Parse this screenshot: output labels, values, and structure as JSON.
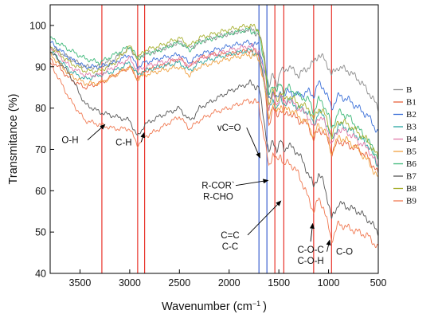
{
  "chart_data": {
    "type": "line",
    "xlabel": "Wavenumber (cm",
    "xlabel_sup": "−1",
    "xlabel_end": ")",
    "ylabel": "Transmitance (%)",
    "xlim": [
      3800,
      500
    ],
    "ylim": [
      40,
      105
    ],
    "x_reversed": true,
    "xticks": [
      3500,
      3000,
      2500,
      2000,
      1500,
      1000,
      500
    ],
    "yticks": [
      40,
      50,
      60,
      70,
      80,
      90,
      100
    ],
    "grid": false,
    "legend_position": "right",
    "reference_lines": [
      {
        "x": 3280,
        "color": "#e8332a"
      },
      {
        "x": 2920,
        "color": "#e8332a"
      },
      {
        "x": 2850,
        "color": "#e8332a"
      },
      {
        "x": 1700,
        "color": "#3a5fd0"
      },
      {
        "x": 1620,
        "color": "#3a5fd0"
      },
      {
        "x": 1540,
        "color": "#e8332a"
      },
      {
        "x": 1450,
        "color": "#e8332a"
      },
      {
        "x": 1150,
        "color": "#e8332a"
      },
      {
        "x": 970,
        "color": "#e8332a"
      }
    ],
    "annotations": [
      {
        "lines": [
          "O-H"
        ],
        "x": 3600,
        "y": 71.5,
        "arrow_to": [
          3250,
          76
        ]
      },
      {
        "lines": [
          "C-H"
        ],
        "x": 3060,
        "y": 71,
        "arrow_to": [
          2855,
          74
        ]
      },
      {
        "lines": [
          "vC=O"
        ],
        "x": 2000,
        "y": 74.5,
        "arrow_to": [
          1690,
          68
        ]
      },
      {
        "lines": [
          "R-COR`",
          "R-CHO"
        ],
        "x": 2110,
        "y": 60.5,
        "arrow_to": [
          1610,
          62.5
        ]
      },
      {
        "lines": [
          "C=C",
          "C-C"
        ],
        "x": 1990,
        "y": 48.5,
        "arrow_to": [
          1480,
          57.5
        ]
      },
      {
        "lines": [
          "C-O-C",
          "C-O-H"
        ],
        "x": 1180,
        "y": 45,
        "arrow_to": [
          1160,
          52
        ]
      },
      {
        "lines": [
          "C-O"
        ],
        "x": 840,
        "y": 44.5,
        "arrow_to": [
          990,
          48
        ]
      }
    ],
    "anchors_x": [
      3800,
      3600,
      3450,
      3300,
      3150,
      3000,
      2920,
      2850,
      2700,
      2500,
      2400,
      2350,
      2300,
      2150,
      2000,
      1800,
      1700,
      1650,
      1600,
      1560,
      1520,
      1480,
      1450,
      1400,
      1300,
      1200,
      1150,
      1100,
      1050,
      1000,
      970,
      900,
      800,
      700,
      600,
      500
    ],
    "series": [
      {
        "name": "B",
        "color": "#8a8a8a",
        "values": [
          95,
          92,
          90,
          90,
          92,
          94.5,
          92,
          93,
          94,
          96,
          94.5,
          95,
          96,
          97,
          98,
          99,
          98,
          93,
          85,
          88,
          86,
          89,
          89,
          90,
          88,
          90,
          91,
          93,
          92,
          90,
          88,
          90,
          89,
          87,
          84,
          80
        ]
      },
      {
        "name": "B1",
        "color": "#e8603c",
        "values": [
          92,
          87,
          85,
          86,
          88,
          90,
          87,
          89,
          90,
          92,
          90,
          91,
          92,
          93,
          93,
          94,
          93,
          86,
          76,
          80,
          78,
          80,
          78,
          79,
          77,
          76,
          72,
          75,
          74,
          72,
          69,
          72,
          71,
          70,
          68,
          64
        ]
      },
      {
        "name": "B2",
        "color": "#3a6fd8",
        "values": [
          96,
          92,
          90,
          90,
          91,
          93,
          90,
          91,
          92,
          93,
          91,
          92,
          93,
          94,
          95,
          96,
          95,
          90,
          82,
          84,
          82,
          84,
          83,
          84,
          83,
          84,
          83,
          86,
          85,
          82,
          80,
          83,
          82,
          80,
          78,
          74
        ]
      },
      {
        "name": "B3",
        "color": "#2aa6a0",
        "values": [
          94,
          89,
          87,
          88,
          89,
          91,
          88,
          89,
          90,
          91,
          89,
          90,
          91,
          92,
          93,
          94,
          93,
          87,
          79,
          82,
          80,
          82,
          81,
          82,
          80,
          79,
          76,
          79,
          78,
          75,
          72,
          76,
          75,
          73,
          71,
          66
        ]
      },
      {
        "name": "B4",
        "color": "#e07aa8",
        "values": [
          95,
          90,
          88,
          88,
          90,
          92,
          89,
          90,
          91,
          92,
          90,
          91,
          92,
          93,
          94,
          95,
          94,
          88,
          80,
          83,
          81,
          83,
          81,
          82,
          80,
          78,
          75,
          78,
          77,
          74,
          71,
          75,
          74,
          72,
          70,
          66
        ]
      },
      {
        "name": "B5",
        "color": "#f0a040",
        "values": [
          93,
          88,
          86,
          86,
          88,
          90,
          87,
          88,
          89,
          90,
          88,
          89,
          90,
          91,
          92,
          93,
          92,
          86,
          78,
          81,
          79,
          81,
          79,
          80,
          78,
          76,
          73,
          76,
          75,
          72,
          69,
          73,
          72,
          70,
          67,
          63
        ]
      },
      {
        "name": "B6",
        "color": "#3cb878",
        "values": [
          97,
          94,
          92,
          91,
          93,
          95,
          92,
          93,
          94,
          96,
          94,
          95,
          96,
          97,
          98,
          99,
          98,
          92,
          83,
          86,
          84,
          86,
          84,
          85,
          83,
          82,
          79,
          82,
          81,
          78,
          75,
          79,
          78,
          75,
          72,
          68
        ]
      },
      {
        "name": "B7",
        "color": "#555555",
        "values": [
          94,
          88,
          81,
          79,
          78,
          77,
          73,
          76,
          78,
          80,
          77,
          78,
          80,
          82,
          84,
          86,
          85,
          77,
          69,
          72,
          70,
          72,
          70,
          71,
          69,
          64,
          61,
          64,
          62,
          57,
          53,
          57,
          56,
          55,
          53,
          50
        ]
      },
      {
        "name": "B8",
        "color": "#a8b030",
        "values": [
          95,
          91,
          89,
          89,
          91,
          95,
          92,
          94,
          95,
          97,
          95,
          96,
          97,
          98,
          99,
          100,
          99,
          92,
          81,
          84,
          82,
          84,
          82,
          83,
          81,
          80,
          77,
          80,
          79,
          76,
          73,
          77,
          76,
          74,
          72,
          68
        ]
      },
      {
        "name": "B9",
        "color": "#f07850",
        "values": [
          91,
          82,
          77,
          76,
          75,
          75,
          71,
          73,
          75,
          78,
          75,
          76,
          77,
          79,
          80,
          82,
          81,
          73,
          66,
          69,
          67,
          69,
          66,
          67,
          64,
          58,
          55,
          58,
          56,
          51,
          48,
          52,
          51,
          50,
          49,
          46
        ]
      }
    ]
  }
}
